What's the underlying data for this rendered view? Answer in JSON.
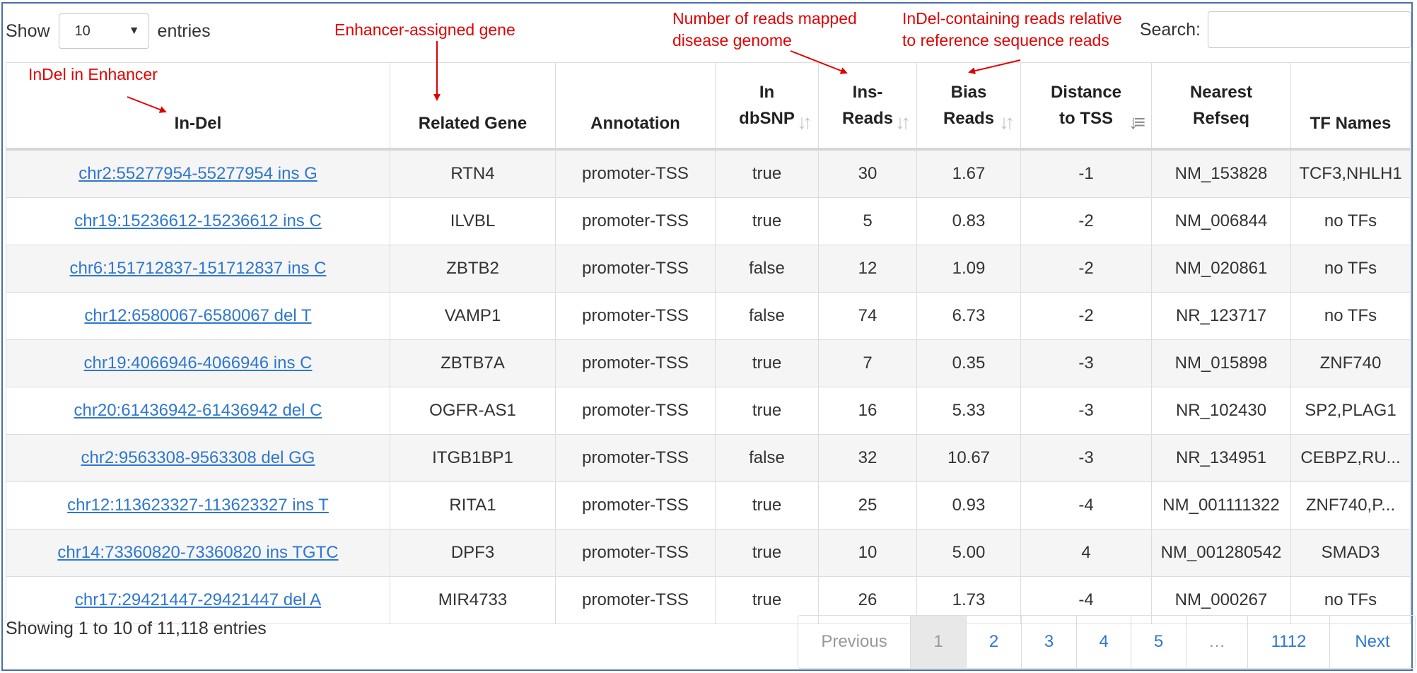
{
  "length_control": {
    "show_label": "Show",
    "value": "10",
    "entries_label": "entries"
  },
  "search": {
    "label": "Search:",
    "value": ""
  },
  "table": {
    "columns": [
      {
        "line1": "In-Del",
        "line2": ""
      },
      {
        "line1": "Related Gene",
        "line2": ""
      },
      {
        "line1": "Annotation",
        "line2": ""
      },
      {
        "line1": "In",
        "line2": "dbSNP"
      },
      {
        "line1": "Ins-",
        "line2": "Reads"
      },
      {
        "line1": "Bias",
        "line2": "Reads"
      },
      {
        "line1": "Distance",
        "line2": "to TSS"
      },
      {
        "line1": "Nearest",
        "line2": "Refseq"
      },
      {
        "line1": "TF Names",
        "line2": ""
      }
    ],
    "rows": [
      [
        "chr2:55277954-55277954 ins G",
        "RTN4",
        "promoter-TSS",
        "true",
        "30",
        "1.67",
        "-1",
        "NM_153828",
        "TCF3,NHLH1"
      ],
      [
        "chr19:15236612-15236612 ins C",
        "ILVBL",
        "promoter-TSS",
        "true",
        "5",
        "0.83",
        "-2",
        "NM_006844",
        "no TFs"
      ],
      [
        "chr6:151712837-151712837 ins C",
        "ZBTB2",
        "promoter-TSS",
        "false",
        "12",
        "1.09",
        "-2",
        "NM_020861",
        "no TFs"
      ],
      [
        "chr12:6580067-6580067 del T",
        "VAMP1",
        "promoter-TSS",
        "false",
        "74",
        "6.73",
        "-2",
        "NR_123717",
        "no TFs"
      ],
      [
        "chr19:4066946-4066946 ins C",
        "ZBTB7A",
        "promoter-TSS",
        "true",
        "7",
        "0.35",
        "-3",
        "NM_015898",
        "ZNF740"
      ],
      [
        "chr20:61436942-61436942 del C",
        "OGFR-AS1",
        "promoter-TSS",
        "true",
        "16",
        "5.33",
        "-3",
        "NR_102430",
        "SP2,PLAG1"
      ],
      [
        "chr2:9563308-9563308 del GG",
        "ITGB1BP1",
        "promoter-TSS",
        "false",
        "32",
        "10.67",
        "-3",
        "NR_134951",
        "CEBPZ,RU..."
      ],
      [
        "chr12:113623327-113623327 ins T",
        "RITA1",
        "promoter-TSS",
        "true",
        "25",
        "0.93",
        "-4",
        "NM_001111322",
        "ZNF740,P..."
      ],
      [
        "chr14:73360820-73360820 ins TGTC",
        "DPF3",
        "promoter-TSS",
        "true",
        "10",
        "5.00",
        "4",
        "NM_001280542",
        "SMAD3"
      ],
      [
        "chr17:29421447-29421447 del A",
        "MIR4733",
        "promoter-TSS",
        "true",
        "26",
        "1.73",
        "-4",
        "NM_000267",
        "no TFs"
      ]
    ]
  },
  "info": "Showing 1 to 10 of 11,118 entries",
  "pagination": {
    "previous": "Previous",
    "pages": [
      "1",
      "2",
      "3",
      "4",
      "5",
      "…",
      "1112"
    ],
    "next": "Next",
    "current": "1"
  },
  "annotations": {
    "indel": "InDel in Enhancer",
    "gene": "Enhancer-assigned gene",
    "reads_line1": "Number of reads mapped",
    "reads_line2": "disease genome",
    "bias_line1": "InDel-containing reads relative",
    "bias_line2": "to reference sequence reads"
  },
  "icons": {
    "sort": "sort-icon",
    "sort_active": "sort-desc-icon",
    "dropdown": "chevron-down-icon"
  },
  "colors": {
    "link": "#2e77d0",
    "annotation": "#e00000",
    "frame": "#4a6fa5",
    "striped_row": "#f5f5f5"
  }
}
